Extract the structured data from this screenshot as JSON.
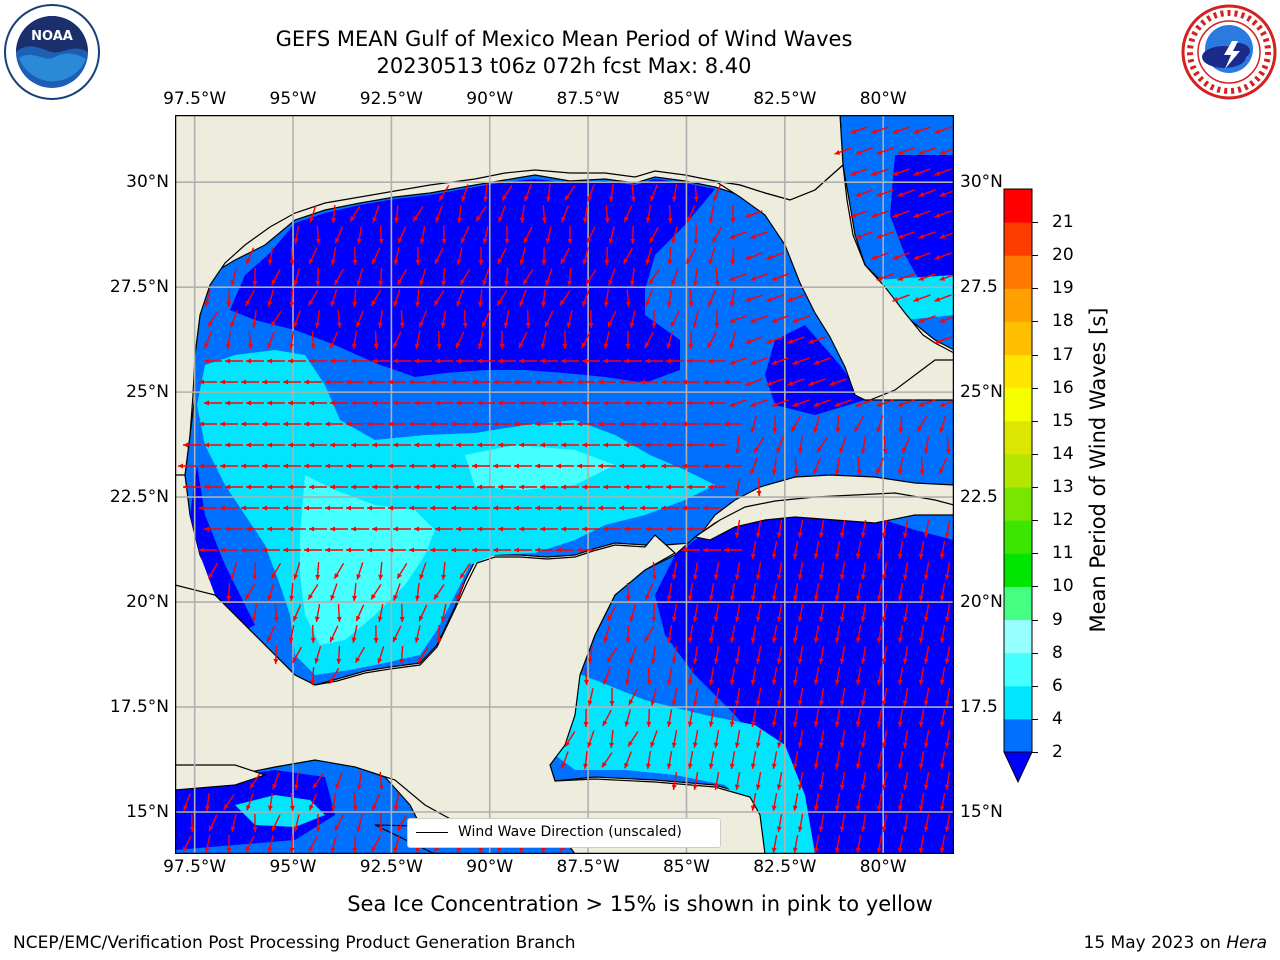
{
  "figure": {
    "title_line1": "GEFS MEAN Gulf of Mexico Mean Period of Wind Waves",
    "title_line2": "20230513 t06z 072h fcst   Max: 8.40",
    "footnote": "Sea Ice Concentration > 15% is shown in pink to yellow",
    "credit_left": "NCEP/EMC/Verification Post Processing Product Generation Branch",
    "credit_date": "15 May 2023 on ",
    "credit_host": "Hera"
  },
  "logos": {
    "noara_icon": "noaa-logo-icon",
    "noaa_text": "NOAA",
    "nws_icon": "nws-logo-icon"
  },
  "map": {
    "lon_ticks": [
      "97.5°W",
      "95°W",
      "92.5°W",
      "90°W",
      "87.5°W",
      "85°W",
      "82.5°W",
      "80°W"
    ],
    "lat_ticks_left": [
      "30°N",
      "27.5°N",
      "25°N",
      "22.5°N",
      "20°N",
      "17.5°N",
      "15°N"
    ],
    "lat_ticks_right": [
      "30°N",
      "27.5",
      "25°N",
      "22.5",
      "20°N",
      "17.5",
      "15°N"
    ],
    "lon_range": [
      -98,
      -78.2
    ],
    "lat_range": [
      14,
      31.6
    ],
    "land_color": "#eeecdc",
    "arrow_color": "#ff0000",
    "grid": true,
    "legend_label": "Wind Wave Direction (unscaled)"
  },
  "colorbar": {
    "label": "Mean Period of Wind Waves [s]",
    "levels": [
      2,
      4,
      6,
      8,
      9,
      10,
      11,
      12,
      13,
      14,
      15,
      16,
      17,
      18,
      19,
      20,
      21
    ],
    "colors": [
      "#0070ff",
      "#00e6ff",
      "#46ffff",
      "#96ffff",
      "#46ff82",
      "#00e600",
      "#3ce600",
      "#78e600",
      "#b4e600",
      "#dce600",
      "#f5ff00",
      "#ffe600",
      "#ffbe00",
      "#ffa000",
      "#ff7800",
      "#ff3c00",
      "#ff0000"
    ],
    "extend_min_color": "#0000ff"
  },
  "chart_data": {
    "type": "heatmap",
    "title": "GEFS MEAN Gulf of Mexico Mean Period of Wind Waves",
    "subtitle": "20230513 t06z 072h fcst   Max: 8.40",
    "variable": "Mean Period of Wind Waves [s]",
    "max": 8.4,
    "xlim": [
      -98,
      -78.2
    ],
    "ylim": [
      14,
      31.6
    ],
    "regions": [
      {
        "area": "northern Gulf shelf",
        "period_range_s": "<2"
      },
      {
        "area": "northeast Gulf / west Florida shelf",
        "period_range_s": "2-4"
      },
      {
        "area": "western Gulf",
        "period_range_s": "4-6"
      },
      {
        "area": "central Gulf / Bay of Campeche",
        "period_range_s": "4-6"
      },
      {
        "area": "NW Caribbean",
        "period_range_s": "<2"
      },
      {
        "area": "Gulf of Honduras",
        "period_range_s": "2-6"
      },
      {
        "area": "Pacific off S Mexico",
        "period_range_s": "<2-4"
      }
    ]
  }
}
